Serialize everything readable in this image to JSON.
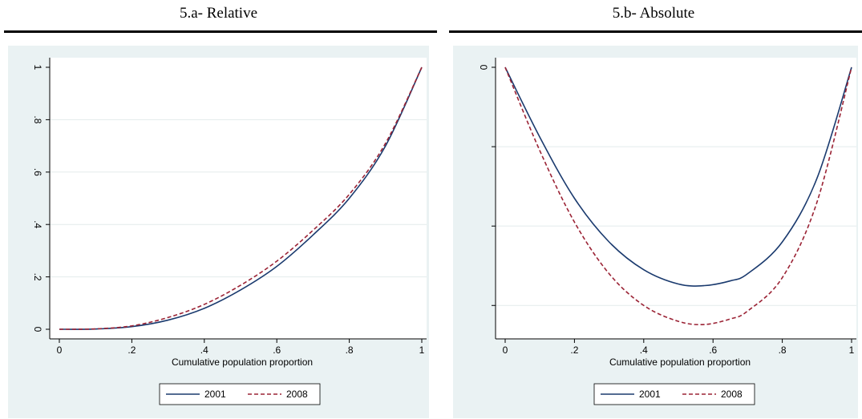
{
  "chart_data": [
    {
      "type": "line",
      "title": "5.a- Relative",
      "xlabel": "Cumulative population proportion",
      "ylabel": "",
      "xlim": [
        0,
        1
      ],
      "ylim": [
        0,
        1
      ],
      "xticks": [
        0,
        0.2,
        0.4,
        0.6,
        0.8,
        1
      ],
      "xtick_labels": [
        "0",
        ".2",
        ".4",
        ".6",
        ".8",
        "1"
      ],
      "yticks": [
        0,
        0.2,
        0.4,
        0.6,
        0.8,
        1
      ],
      "ytick_labels": [
        "0",
        ".2",
        ".4",
        ".6",
        ".8",
        "1"
      ],
      "grid": true,
      "legend_position": "bottom",
      "x": [
        0,
        0.1,
        0.2,
        0.3,
        0.4,
        0.5,
        0.6,
        0.7,
        0.8,
        0.9,
        1.0
      ],
      "series": [
        {
          "name": "2001",
          "color": "#1a3a6e",
          "dash": "solid",
          "values": [
            0,
            0.001,
            0.01,
            0.035,
            0.08,
            0.15,
            0.24,
            0.36,
            0.5,
            0.7,
            1.0
          ]
        },
        {
          "name": "2008",
          "color": "#9b2335",
          "dash": "dashed",
          "values": [
            0,
            0.0015,
            0.013,
            0.045,
            0.095,
            0.168,
            0.26,
            0.378,
            0.515,
            0.71,
            1.0
          ]
        }
      ]
    },
    {
      "type": "line",
      "title": "5.b- Absolute",
      "xlabel": "Cumulative population proportion",
      "ylabel": "",
      "xlim": [
        0,
        1
      ],
      "ylim": [
        -3.3,
        0
      ],
      "xticks": [
        0,
        0.2,
        0.4,
        0.6,
        0.8,
        1
      ],
      "xtick_labels": [
        "0",
        ".2",
        ".4",
        ".6",
        ".8",
        "1"
      ],
      "yticks": [
        0,
        -1,
        -2,
        -3
      ],
      "ytick_labels": [
        "0",
        "",
        "",
        ""
      ],
      "grid": true,
      "legend_position": "bottom",
      "x": [
        0,
        0.1,
        0.2,
        0.3,
        0.4,
        0.5,
        0.575,
        0.65,
        0.7,
        0.8,
        0.9,
        1.0
      ],
      "series": [
        {
          "name": "2001",
          "color": "#1a3a6e",
          "dash": "solid",
          "values": [
            0,
            -0.88,
            -1.65,
            -2.2,
            -2.55,
            -2.73,
            -2.75,
            -2.69,
            -2.6,
            -2.2,
            -1.4,
            0
          ]
        },
        {
          "name": "2008",
          "color": "#9b2335",
          "dash": "dashed",
          "values": [
            0,
            -1.05,
            -1.95,
            -2.6,
            -3.0,
            -3.2,
            -3.24,
            -3.17,
            -3.07,
            -2.65,
            -1.7,
            0
          ]
        }
      ]
    }
  ]
}
